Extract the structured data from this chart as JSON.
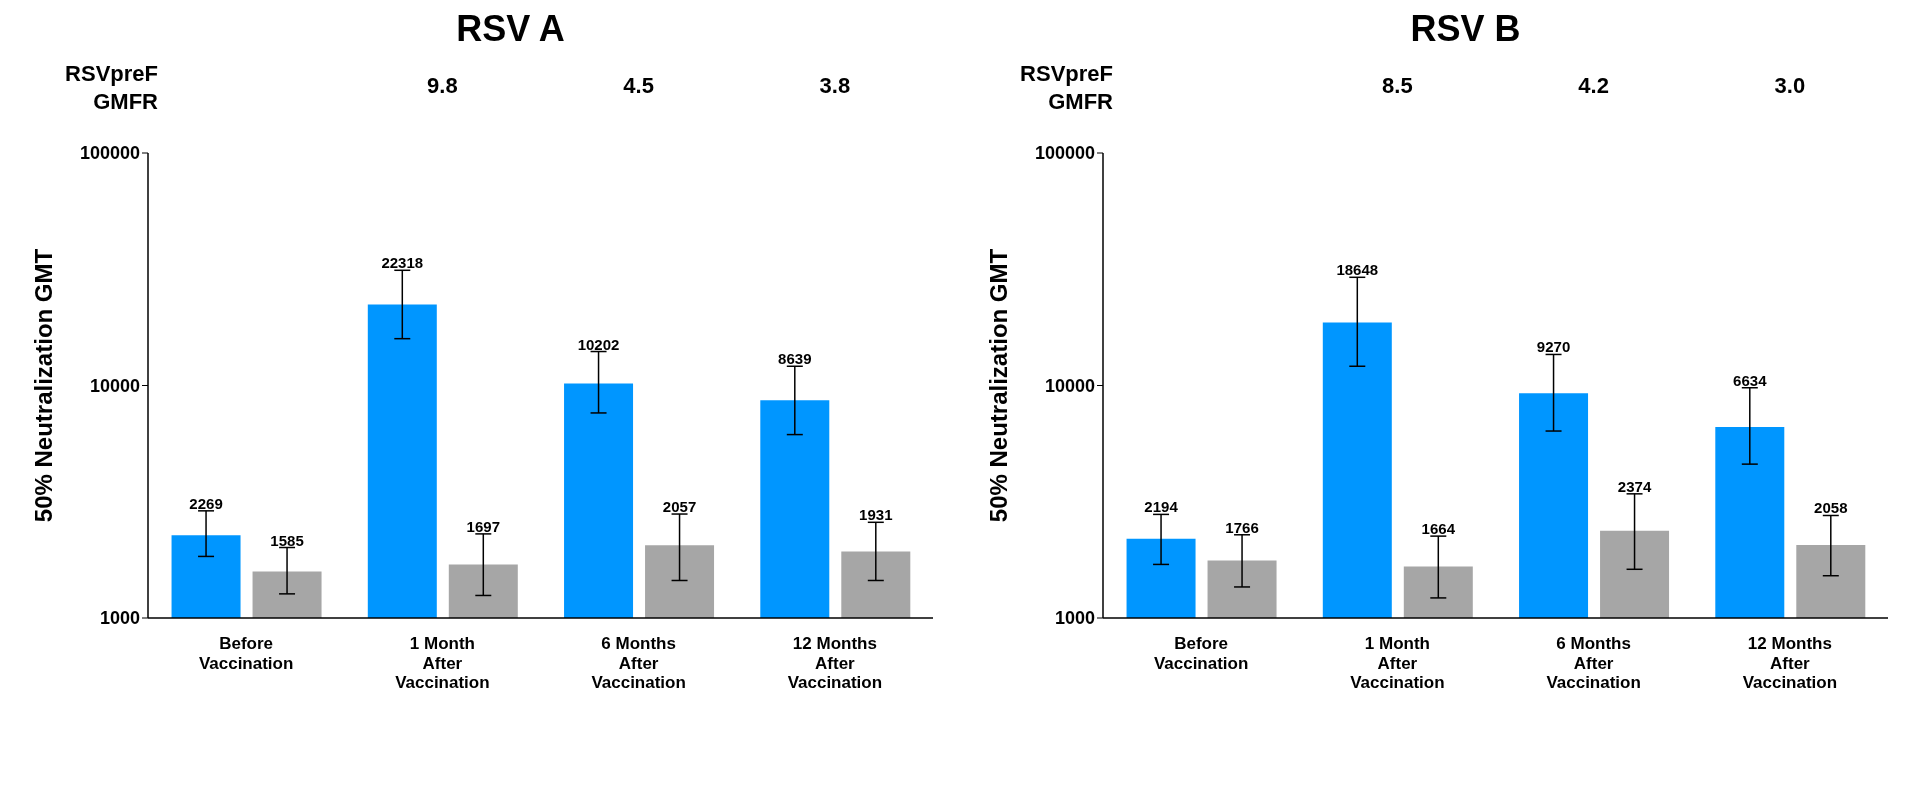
{
  "chart_data": [
    {
      "type": "bar",
      "title": "RSV A",
      "ylabel": "50% Neutralization GMT",
      "categories": [
        "Before\nVaccination",
        "1 Month\nAfter\nVaccination",
        "6 Months\nAfter\nVaccination",
        "12 Months\nAfter\nVaccination"
      ],
      "series": [
        {
          "color": "#0096ff",
          "values": [
            2269,
            22318,
            10202,
            8639
          ],
          "errors": [
            [
              1840,
              2890
            ],
            [
              15900,
              31300
            ],
            [
              7620,
              14000
            ],
            [
              6150,
              12100
            ]
          ]
        },
        {
          "color": "#a6a6a6",
          "values": [
            1585,
            1697,
            2057,
            1931
          ],
          "errors": [
            [
              1270,
              2010
            ],
            [
              1250,
              2300
            ],
            [
              1450,
              2800
            ],
            [
              1450,
              2580
            ]
          ]
        }
      ],
      "log": true,
      "ylim": [
        1000,
        100000
      ],
      "yticks": [
        1000,
        10000,
        100000
      ],
      "grid": false,
      "legend": false,
      "data_labels": true,
      "annotations": [
        "RSVpreF\nGMFR",
        "9.8",
        "4.5",
        "3.8"
      ]
    },
    {
      "type": "bar",
      "title": "RSV B",
      "ylabel": "50% Neutralization GMT",
      "categories": [
        "Before\nVaccination",
        "1 Month\nAfter\nVaccination",
        "6 Months\nAfter\nVaccination",
        "12 Months\nAfter\nVaccination"
      ],
      "series": [
        {
          "color": "#0096ff",
          "values": [
            2194,
            18648,
            9270,
            6634
          ],
          "errors": [
            [
              1700,
              2790
            ],
            [
              12100,
              29200
            ],
            [
              6370,
              13600
            ],
            [
              4590,
              9780
            ]
          ]
        },
        {
          "color": "#a6a6a6",
          "values": [
            1766,
            1664,
            2374,
            2058
          ],
          "errors": [
            [
              1360,
              2280
            ],
            [
              1220,
              2250
            ],
            [
              1620,
              3420
            ],
            [
              1520,
              2760
            ]
          ]
        }
      ],
      "log": true,
      "ylim": [
        1000,
        100000
      ],
      "yticks": [
        1000,
        10000,
        100000
      ],
      "grid": false,
      "legend": false,
      "data_labels": true,
      "annotations": [
        "RSVpreF\nGMFR",
        "8.5",
        "4.2",
        "3.0"
      ]
    }
  ]
}
